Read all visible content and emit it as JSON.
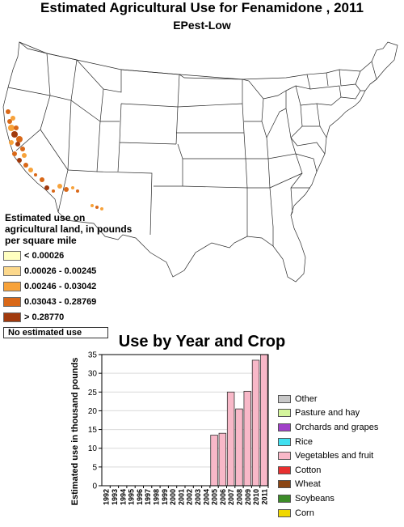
{
  "title": "Estimated Agricultural Use for Fenamidone , 2011",
  "subtitle": "EPest-Low",
  "map_legend": {
    "title": "Estimated use on agricultural land, in pounds per square mile",
    "classes": [
      {
        "label": "< 0.00026",
        "color": "#ffffc0"
      },
      {
        "label": "0.00026 - 0.00245",
        "color": "#fcd88c"
      },
      {
        "label": "0.00246 - 0.03042",
        "color": "#f7a23a"
      },
      {
        "label": "0.03043 - 0.28769",
        "color": "#d96818"
      },
      {
        "label": "> 0.28770",
        "color": "#a13a0d"
      },
      {
        "label": "No estimated use",
        "color": "#ffffff"
      }
    ]
  },
  "chart_data": {
    "type": "bar",
    "title": "Use by Year and Crop",
    "ylabel": "Estimated use in thousand pounds",
    "xlabel": "",
    "ylim": [
      0,
      35
    ],
    "yticks": [
      0,
      5,
      10,
      15,
      20,
      25,
      30,
      35
    ],
    "categories": [
      "1992",
      "1993",
      "1994",
      "1995",
      "1996",
      "1997",
      "1998",
      "1999",
      "2000",
      "2001",
      "2002",
      "2003",
      "2004",
      "2005",
      "2006",
      "2007",
      "2008",
      "2009",
      "2010",
      "2011"
    ],
    "series": [
      {
        "name": "Vegetables and fruit",
        "color": "#f8b8c8",
        "values": [
          0,
          0,
          0,
          0,
          0,
          0,
          0,
          0,
          0,
          0,
          0,
          0,
          0,
          13.5,
          14,
          25,
          20.5,
          25.2,
          33.5,
          35
        ]
      }
    ],
    "legend": [
      {
        "label": "Other",
        "color": "#c8c8c8"
      },
      {
        "label": "Pasture and hay",
        "color": "#d4f59c"
      },
      {
        "label": "Orchards and grapes",
        "color": "#a040c8"
      },
      {
        "label": "Rice",
        "color": "#40e0f0"
      },
      {
        "label": "Vegetables and fruit",
        "color": "#f8b8c8"
      },
      {
        "label": "Cotton",
        "color": "#e83030"
      },
      {
        "label": "Wheat",
        "color": "#8b4513"
      },
      {
        "label": "Soybeans",
        "color": "#3c8c28"
      },
      {
        "label": "Corn",
        "color": "#f0d800"
      }
    ],
    "legend_position": "right"
  }
}
